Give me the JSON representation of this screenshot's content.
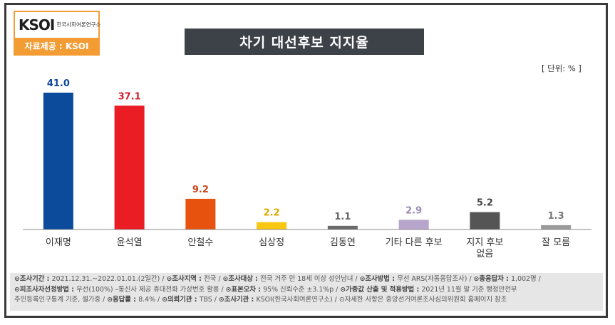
{
  "logo": {
    "mark": "KSOI",
    "sub": "한국사회여론연구소",
    "source": "자료제공 : KSOI"
  },
  "title": "차기 대선후보 지지율",
  "unit": "[ 단위: % ]",
  "chart_data": {
    "type": "bar",
    "title": "차기 대선후보 지지율",
    "unit": "%",
    "categories": [
      "이재명",
      "윤석열",
      "안철수",
      "심상정",
      "김동연",
      "기타 다른 후보",
      "지지 후보\n없음",
      "잘 모름"
    ],
    "values": [
      41.0,
      37.1,
      9.2,
      2.2,
      1.1,
      2.9,
      5.2,
      1.3
    ],
    "value_labels": [
      "41.0",
      "37.1",
      "9.2",
      "2.2",
      "1.1",
      "2.9",
      "5.2",
      "1.3"
    ],
    "colors": [
      "#0c4a9b",
      "#ea1c24",
      "#e8520f",
      "#f9c70e",
      "#6b6b6b",
      "#b8a5cc",
      "#555555",
      "#9a9a9a"
    ],
    "label_colors": [
      "#0c4a9b",
      "#d0202b",
      "#c9471a",
      "#e0a800",
      "#666666",
      "#9d8ab5",
      "#444444",
      "#777777"
    ],
    "ylim": [
      0,
      45
    ],
    "grid": false,
    "legend": "none"
  },
  "footer": {
    "line1": [
      {
        "k": "⊙조사기간 : ",
        "v": "2021.12.31.~2022.01.01.(2일간)  /  "
      },
      {
        "k": "⊙조사지역 : ",
        "v": "전국  /  "
      },
      {
        "k": "⊙조사대상 : ",
        "v": "전국 거주 만 18세 이상 성인남녀  /  "
      },
      {
        "k": "⊙조사방법 : ",
        "v": "무선 ARS(자동응답조사)  /  "
      },
      {
        "k": "⊙총응답자 : ",
        "v": "1,002명  /"
      }
    ],
    "line2": [
      {
        "k": "⊙피조사자선정방법 : ",
        "v": "무선(100%) –통신사 제공 휴대전화 가상번호 활용  /  "
      },
      {
        "k": "⊙표본오차 : ",
        "v": "95% 신뢰수준 ±3.1%p  /  "
      },
      {
        "k": "⊙가중값 산출 및 적용방법 : ",
        "v": "2021년 11월 말 기준 행정안전부"
      }
    ],
    "line3": [
      {
        "k": "",
        "v": "주민등록인구통계 기준, 셀가중  /  "
      },
      {
        "k": "⊙응답률 : ",
        "v": "8.4%  /  "
      },
      {
        "k": "⊙의뢰기관 : ",
        "v": "TBS  /  "
      },
      {
        "k": "⊙조사기관 : ",
        "v": "KSOI(한국사회여론연구소)  /  "
      },
      {
        "k": "",
        "v": "⊙자세한 사항은 중앙선거여론조사심의위원회 홈페이지 참조"
      }
    ]
  }
}
